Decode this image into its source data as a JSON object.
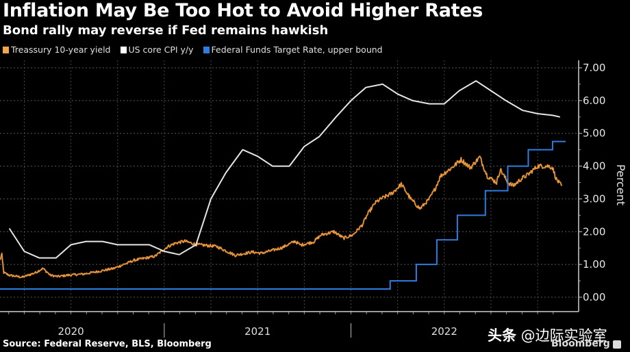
{
  "header": {
    "title": "Inflation May Be Too Hot to Avoid Higher Rates",
    "subtitle": "Bond rally may reverse if Fed remains hawkish"
  },
  "legend": [
    {
      "label": "Treassury 10-year yield",
      "color": "#f5a54a"
    },
    {
      "label": "US core CPI y/y",
      "color": "#ffffff"
    },
    {
      "label": "Federal Funds Target Rate, upper bound",
      "color": "#2f7de1"
    }
  ],
  "footer": {
    "source": "Source: Federal Reserve, BLS, Bloomberg",
    "brand": "Bloomberg",
    "watermark_bold": "头条",
    "watermark_rest": " @边际实验室"
  },
  "chart_data": {
    "type": "line",
    "title": "Inflation May Be Too Hot to Avoid Higher Rates",
    "subtitle": "Bond rally may reverse if Fed remains hawkish",
    "xlabel": "",
    "ylabel": "Percent",
    "ylim": [
      0,
      7
    ],
    "xlim": [
      2020.12,
      2023.15
    ],
    "yticks": [
      "0.00",
      "1.00",
      "2.00",
      "3.00",
      "4.00",
      "5.00",
      "6.00",
      "7.00"
    ],
    "ytick_values": [
      0,
      1,
      2,
      3,
      4,
      5,
      6,
      7
    ],
    "xticks": [
      {
        "label": "2020",
        "x": 2020.5
      },
      {
        "label": "2021",
        "x": 2021.5
      },
      {
        "label": "2022",
        "x": 2022.5
      }
    ],
    "year_boundaries": [
      2021.0,
      2022.0
    ],
    "grid": true,
    "legend_position": "top-left",
    "y_axis_side": "right",
    "series": [
      {
        "name": "Treassury 10-year yield",
        "color": "#f5a54a",
        "style": "noisy-daily",
        "x": [
          2020.12,
          2020.13,
          2020.14,
          2020.17,
          2020.24,
          2020.31,
          2020.35,
          2020.39,
          2020.43,
          2020.48,
          2020.57,
          2020.66,
          2020.73,
          2020.84,
          2020.95,
          2021.02,
          2021.06,
          2021.11,
          2021.17,
          2021.28,
          2021.38,
          2021.47,
          2021.52,
          2021.63,
          2021.7,
          2021.73,
          2021.8,
          2021.84,
          2021.91,
          2021.96,
          2022.01,
          2022.06,
          2022.09,
          2022.13,
          2022.16,
          2022.22,
          2022.27,
          2022.32,
          2022.37,
          2022.42,
          2022.45,
          2022.48,
          2022.54,
          2022.59,
          2022.64,
          2022.69,
          2022.73,
          2022.78,
          2022.8,
          2022.84,
          2022.87,
          2022.91,
          2022.95,
          2023.0,
          2023.06,
          2023.08,
          2023.1,
          2023.12,
          2023.13
        ],
        "values": [
          1.13,
          1.3,
          0.75,
          0.67,
          0.61,
          0.75,
          0.88,
          0.67,
          0.63,
          0.67,
          0.71,
          0.8,
          0.88,
          1.13,
          1.25,
          1.55,
          1.65,
          1.71,
          1.61,
          1.55,
          1.28,
          1.38,
          1.34,
          1.51,
          1.71,
          1.59,
          1.69,
          1.9,
          2.0,
          1.8,
          1.9,
          2.2,
          2.54,
          2.88,
          3.0,
          3.17,
          3.45,
          3.0,
          2.7,
          3.0,
          3.3,
          3.7,
          3.95,
          4.2,
          3.95,
          4.28,
          3.7,
          3.5,
          3.9,
          3.5,
          3.4,
          3.6,
          3.75,
          4.0,
          4.0,
          3.95,
          3.6,
          3.45,
          3.4
        ]
      },
      {
        "name": "US core CPI y/y",
        "color": "#ffffff",
        "x": [
          2020.17,
          2020.25,
          2020.33,
          2020.42,
          2020.5,
          2020.58,
          2020.67,
          2020.75,
          2020.83,
          2020.92,
          2021.0,
          2021.08,
          2021.17,
          2021.25,
          2021.33,
          2021.42,
          2021.5,
          2021.58,
          2021.67,
          2021.75,
          2021.83,
          2021.92,
          2022.0,
          2022.08,
          2022.17,
          2022.25,
          2022.33,
          2022.42,
          2022.5,
          2022.58,
          2022.67,
          2022.75,
          2022.83,
          2022.92,
          2023.0,
          2023.08,
          2023.12
        ],
        "values": [
          2.1,
          1.4,
          1.2,
          1.2,
          1.6,
          1.7,
          1.7,
          1.6,
          1.6,
          1.6,
          1.4,
          1.3,
          1.6,
          3.0,
          3.8,
          4.5,
          4.3,
          4.0,
          4.0,
          4.6,
          4.9,
          5.5,
          6.0,
          6.4,
          6.5,
          6.2,
          6.0,
          5.9,
          5.9,
          6.3,
          6.6,
          6.3,
          6.0,
          5.7,
          5.6,
          5.55,
          5.5
        ]
      },
      {
        "name": "Federal Funds Target Rate, upper bound",
        "color": "#2f7de1",
        "step": true,
        "x": [
          2020.12,
          2022.21,
          2022.35,
          2022.46,
          2022.57,
          2022.72,
          2022.84,
          2022.95,
          2023.08,
          2023.15
        ],
        "values": [
          0.25,
          0.5,
          1.0,
          1.75,
          2.5,
          3.25,
          4.0,
          4.5,
          4.75,
          4.75
        ]
      }
    ]
  }
}
